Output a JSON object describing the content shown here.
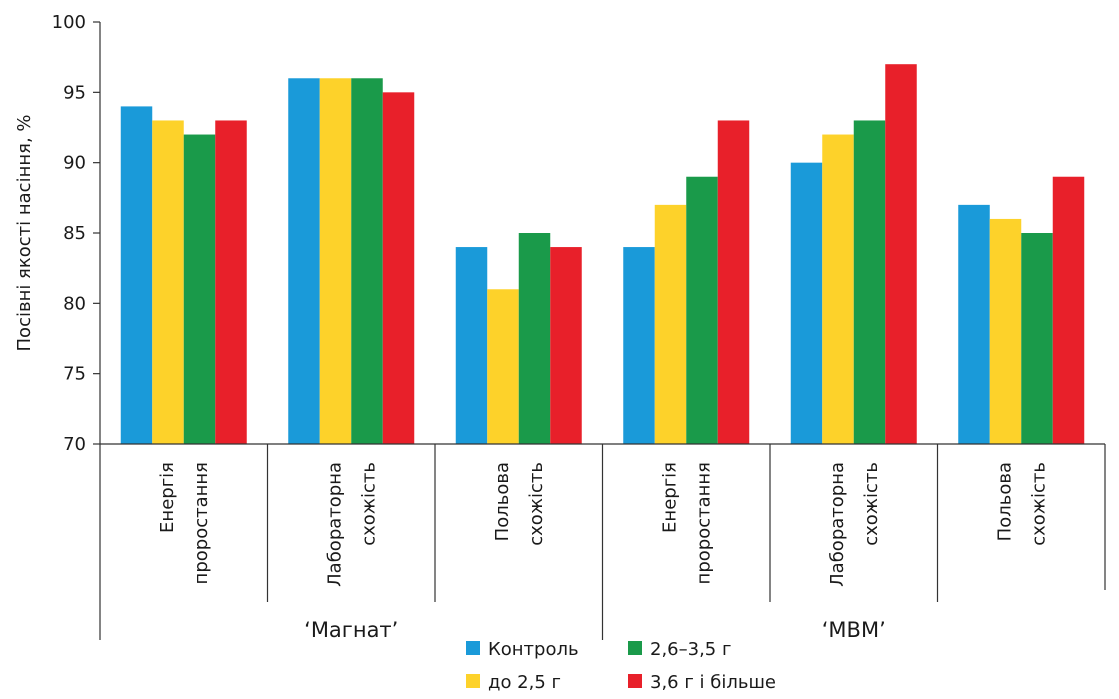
{
  "chart_data": {
    "type": "bar",
    "ylabel": "Посівні якості насіння, %",
    "ylim": [
      70,
      100
    ],
    "yticks": [
      70,
      75,
      80,
      85,
      90,
      95,
      100
    ],
    "grid": false,
    "legend_position": "bottom-center",
    "groups": [
      {
        "label": "‘Магнат’",
        "categories": [
          [
            "Енергія",
            "проростання"
          ],
          [
            "Лабораторна",
            "схожість"
          ],
          [
            "Польова",
            "схожість"
          ]
        ]
      },
      {
        "label": "‘МВМ’",
        "categories": [
          [
            "Енергія",
            "проростання"
          ],
          [
            "Лабораторна",
            "схожість"
          ],
          [
            "Польова",
            "схожість"
          ]
        ]
      }
    ],
    "series": [
      {
        "name": "Контроль",
        "color": "#1a9ad9",
        "values": [
          94,
          96,
          84,
          84,
          90,
          87
        ]
      },
      {
        "name": "до 2,5 г",
        "color": "#fdd22a",
        "values": [
          93,
          96,
          81,
          87,
          92,
          86
        ]
      },
      {
        "name": "2,6–3,5 г",
        "color": "#1a9a4a",
        "values": [
          92,
          96,
          85,
          89,
          93,
          85
        ]
      },
      {
        "name": "3,6 г і більше",
        "color": "#e8202a",
        "values": [
          93,
          95,
          84,
          93,
          97,
          89
        ]
      }
    ]
  }
}
